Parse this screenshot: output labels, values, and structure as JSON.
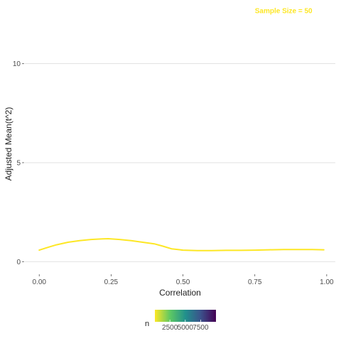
{
  "chart_data": {
    "type": "line",
    "title": "",
    "xlabel": "Correlation",
    "ylabel": "Adjusted Mean(t^2)",
    "xlim": [
      -0.05,
      1.03
    ],
    "ylim": [
      -0.6,
      12.5
    ],
    "x_ticks": [
      0.0,
      0.25,
      0.5,
      0.75,
      1.0
    ],
    "x_tick_labels": [
      "0.00",
      "0.25",
      "0.50",
      "0.75",
      "1.00"
    ],
    "y_ticks": [
      0,
      5,
      10
    ],
    "y_tick_labels": [
      "0",
      "5",
      "10"
    ],
    "grid": true,
    "annotation": {
      "text": "Sample Size = 50",
      "x": 0.85,
      "y": 12.7,
      "color": "#FDE725"
    },
    "series": [
      {
        "color": "#FDE725",
        "x": [
          0.0,
          0.03,
          0.06,
          0.1,
          0.14,
          0.18,
          0.22,
          0.24,
          0.28,
          0.32,
          0.36,
          0.4,
          0.43,
          0.46,
          0.5,
          0.55,
          0.6,
          0.65,
          0.7,
          0.75,
          0.8,
          0.85,
          0.9,
          0.95,
          0.99
        ],
        "y": [
          0.58,
          0.72,
          0.85,
          0.98,
          1.06,
          1.12,
          1.15,
          1.16,
          1.12,
          1.06,
          0.98,
          0.9,
          0.78,
          0.65,
          0.58,
          0.56,
          0.56,
          0.57,
          0.57,
          0.58,
          0.6,
          0.61,
          0.61,
          0.61,
          0.6
        ]
      }
    ],
    "legend": {
      "title": "n",
      "placement": "bottom",
      "labels": [
        "2500",
        "5000",
        "7500"
      ],
      "label_values": [
        2500,
        5000,
        7500
      ],
      "range": [
        50,
        10000
      ],
      "colors": [
        "#FDE725",
        "#5DC863",
        "#21908C",
        "#3B528B",
        "#440154"
      ]
    }
  }
}
